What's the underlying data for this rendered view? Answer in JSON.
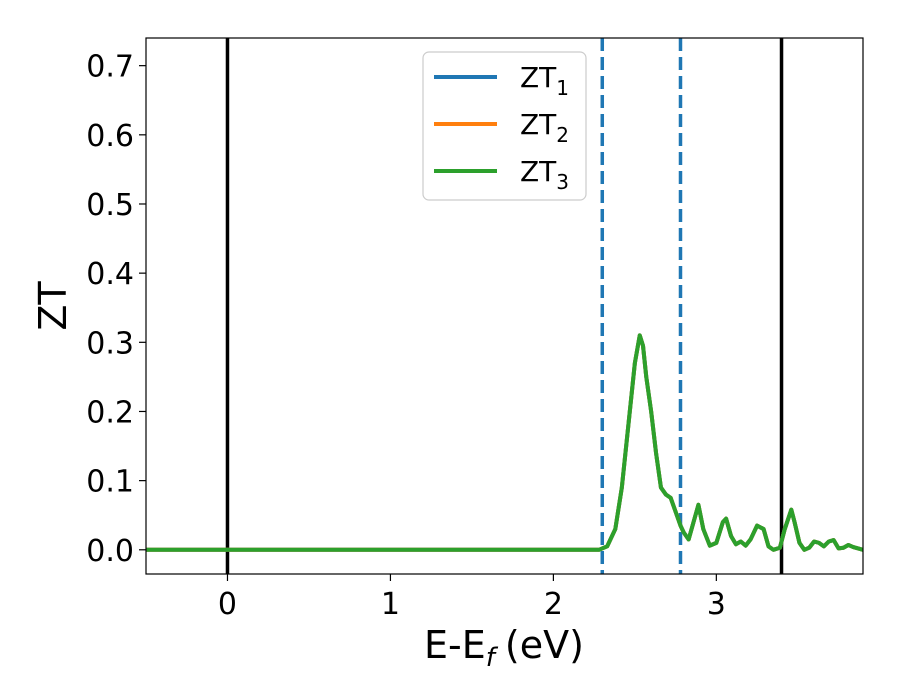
{
  "chart_data": {
    "type": "line",
    "xlabel": {
      "main": "E-E",
      "sub": "f",
      "unit": "(eV)"
    },
    "ylabel": "ZT",
    "xlim": [
      -0.5,
      3.9
    ],
    "ylim": [
      -0.035,
      0.74
    ],
    "x_ticks": [
      0,
      1,
      2,
      3
    ],
    "x_tick_labels": [
      "0",
      "1",
      "2",
      "3"
    ],
    "y_ticks": [
      0.0,
      0.1,
      0.2,
      0.3,
      0.4,
      0.5,
      0.6,
      0.7
    ],
    "y_tick_labels": [
      "0.0",
      "0.1",
      "0.2",
      "0.3",
      "0.4",
      "0.5",
      "0.6",
      "0.7"
    ],
    "grid": false,
    "legend_position": "top-center",
    "vertical_lines": [
      {
        "x": 0.0,
        "style": "solid",
        "color": "#000000"
      },
      {
        "x": 3.4,
        "style": "solid",
        "color": "#000000"
      },
      {
        "x": 2.3,
        "style": "dashed",
        "color": "#1f77b4"
      },
      {
        "x": 2.78,
        "style": "dashed",
        "color": "#1f77b4"
      }
    ],
    "x": [
      -0.5,
      2.28,
      2.33,
      2.38,
      2.42,
      2.46,
      2.5,
      2.53,
      2.55,
      2.57,
      2.6,
      2.63,
      2.66,
      2.69,
      2.72,
      2.75,
      2.78,
      2.8,
      2.83,
      2.86,
      2.89,
      2.92,
      2.96,
      3.0,
      3.04,
      3.06,
      3.09,
      3.12,
      3.15,
      3.18,
      3.21,
      3.25,
      3.29,
      3.32,
      3.35,
      3.39,
      3.42,
      3.46,
      3.48,
      3.51,
      3.54,
      3.57,
      3.6,
      3.63,
      3.66,
      3.69,
      3.72,
      3.75,
      3.78,
      3.81,
      3.84,
      3.87,
      3.9
    ],
    "series": [
      {
        "name": "ZT",
        "sub": "1",
        "color": "#1f77b4",
        "values": [
          0.0,
          0.0,
          0.005,
          0.03,
          0.09,
          0.18,
          0.27,
          0.31,
          0.295,
          0.25,
          0.2,
          0.14,
          0.09,
          0.08,
          0.075,
          0.055,
          0.035,
          0.025,
          0.015,
          0.04,
          0.065,
          0.03,
          0.006,
          0.01,
          0.04,
          0.045,
          0.02,
          0.008,
          0.012,
          0.006,
          0.015,
          0.035,
          0.03,
          0.005,
          0.0,
          0.003,
          0.03,
          0.058,
          0.04,
          0.01,
          0.0,
          0.003,
          0.012,
          0.01,
          0.005,
          0.012,
          0.014,
          0.002,
          0.003,
          0.007,
          0.004,
          0.002,
          0.0
        ]
      },
      {
        "name": "ZT",
        "sub": "2",
        "color": "#ff7f0e",
        "values": [
          0.0,
          0.0,
          0.005,
          0.03,
          0.09,
          0.18,
          0.27,
          0.31,
          0.295,
          0.25,
          0.2,
          0.14,
          0.09,
          0.08,
          0.075,
          0.055,
          0.035,
          0.025,
          0.015,
          0.04,
          0.065,
          0.03,
          0.006,
          0.01,
          0.04,
          0.045,
          0.02,
          0.008,
          0.012,
          0.006,
          0.015,
          0.035,
          0.03,
          0.005,
          0.0,
          0.003,
          0.03,
          0.058,
          0.04,
          0.01,
          0.0,
          0.003,
          0.012,
          0.01,
          0.005,
          0.012,
          0.014,
          0.002,
          0.003,
          0.007,
          0.004,
          0.002,
          0.0
        ]
      },
      {
        "name": "ZT",
        "sub": "3",
        "color": "#2ca02c",
        "values": [
          0.0,
          0.0,
          0.005,
          0.03,
          0.09,
          0.18,
          0.27,
          0.31,
          0.295,
          0.25,
          0.2,
          0.14,
          0.09,
          0.08,
          0.075,
          0.055,
          0.035,
          0.025,
          0.015,
          0.04,
          0.065,
          0.03,
          0.006,
          0.01,
          0.04,
          0.045,
          0.02,
          0.008,
          0.012,
          0.006,
          0.015,
          0.035,
          0.03,
          0.005,
          0.0,
          0.003,
          0.03,
          0.058,
          0.04,
          0.01,
          0.0,
          0.003,
          0.012,
          0.01,
          0.005,
          0.012,
          0.014,
          0.002,
          0.003,
          0.007,
          0.004,
          0.002,
          0.0
        ]
      }
    ]
  }
}
